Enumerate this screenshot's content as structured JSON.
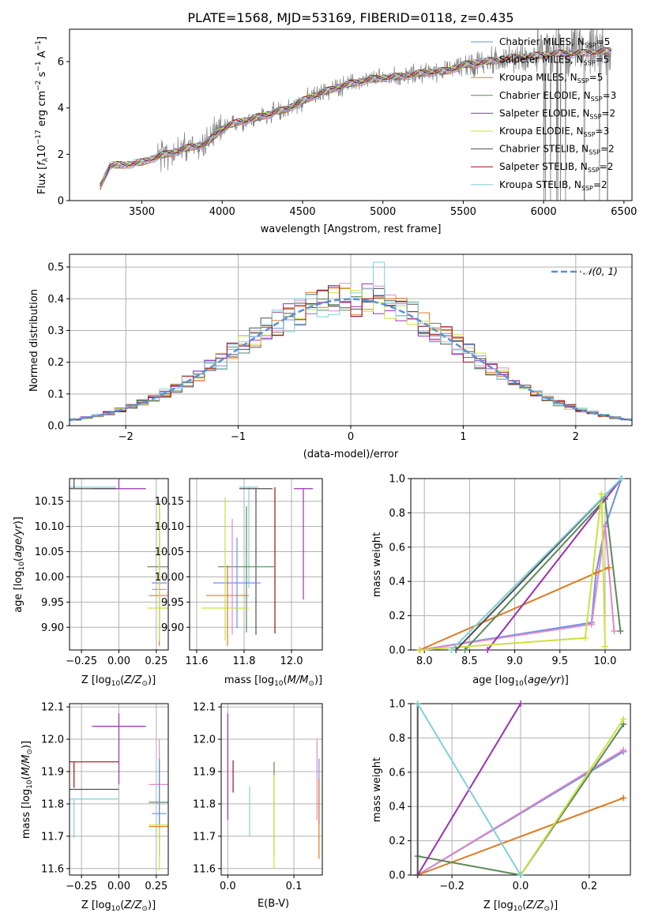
{
  "colors": {
    "Chabrier MILES": "#6a8fe8",
    "Salpeter MILES": "#e08ac8",
    "Kroupa MILES": "#e07a20",
    "Chabrier ELODIE": "#5a8a5a",
    "Salpeter ELODIE": "#9b30b0",
    "Kroupa ELODIE": "#cce040",
    "Chabrier STELIB": "#505050",
    "Salpeter STELIB": "#a01010",
    "Kroupa STELIB": "#80d0d8",
    "observed": "#808080",
    "gauss": "#5b8fd8"
  },
  "chart_data": [
    {
      "id": "spectrum",
      "type": "line",
      "title": "PLATE=1568, MJD=53169, FIBERID=0118, z=0.435",
      "xlabel": "wavelength [Angstrom, rest frame]",
      "ylabel": "Flux [f_λ 10^-17 erg cm^-2 s^-1 A^-1]",
      "xlim": [
        3050,
        6550
      ],
      "ylim": [
        0,
        7.4
      ],
      "xticks": [
        3500,
        4000,
        4500,
        5000,
        5500,
        6000,
        6500
      ],
      "yticks": [
        0,
        2,
        4,
        6
      ],
      "grid": false,
      "legend_position": "top-right",
      "legend": [
        {
          "name": "Chabrier MILES",
          "nssp": "5"
        },
        {
          "name": "Salpeter MILES",
          "nssp": "5"
        },
        {
          "name": "Kroupa MILES",
          "nssp": "5"
        },
        {
          "name": "Chabrier ELODIE",
          "nssp": "3"
        },
        {
          "name": "Salpeter ELODIE",
          "nssp": "2"
        },
        {
          "name": "Kroupa ELODIE",
          "nssp": "3"
        },
        {
          "name": "Chabrier STELIB",
          "nssp": "2"
        },
        {
          "name": "Salpeter STELIB",
          "nssp": "2"
        },
        {
          "name": "Kroupa STELIB",
          "nssp": "2"
        }
      ],
      "model_x": [
        3240,
        3300,
        3400,
        3500,
        3600,
        3700,
        3800,
        3900,
        4000,
        4100,
        4200,
        4300,
        4400,
        4500,
        4600,
        4700,
        4800,
        4900,
        5000,
        5100,
        5200,
        5300,
        5400,
        5500,
        5600,
        5700,
        5800,
        5900,
        6000,
        6100,
        6200,
        6300,
        6400
      ],
      "model_y": [
        0.6,
        1.5,
        1.55,
        1.65,
        1.9,
        2.1,
        2.3,
        2.45,
        3.1,
        3.4,
        3.55,
        3.75,
        3.95,
        4.3,
        4.6,
        4.85,
        5.05,
        5.2,
        5.3,
        5.35,
        5.45,
        5.55,
        5.6,
        5.85,
        5.95,
        6.05,
        6.15,
        6.2,
        6.3,
        6.35,
        6.35,
        6.4,
        6.45
      ]
    },
    {
      "id": "residuals",
      "type": "histogram",
      "xlabel": "(data-model)/error",
      "ylabel": "Normed distribution",
      "xlim": [
        -2.5,
        2.5
      ],
      "ylim": [
        0,
        0.54
      ],
      "xticks": [
        -2,
        -1,
        0,
        1,
        2
      ],
      "yticks": [
        0.0,
        0.1,
        0.2,
        0.3,
        0.4,
        0.5
      ],
      "grid": true,
      "legend_position": "top-right",
      "legend": [
        {
          "name": "𝒩(0, 1)"
        }
      ],
      "bin_width": 0.1
    },
    {
      "id": "age-vs-Z",
      "type": "errorbar",
      "xlabel": "Z [log10(Z/Z⊙)]",
      "ylabel": "age [log10(age/yr)]",
      "xlim": [
        -0.33,
        0.33
      ],
      "ylim": [
        9.855,
        10.195
      ],
      "xticks": [
        -0.25,
        0.0,
        0.25
      ],
      "yticks": [
        9.9,
        9.95,
        10.0,
        10.05,
        10.1,
        10.15
      ],
      "grid": true,
      "points": [
        {
          "model": "Salpeter ELODIE",
          "x": 0.0,
          "xerr": 0.18,
          "y": 10.175,
          "yerr": [
            0.0,
            0.225
          ]
        },
        {
          "model": "Kroupa STELIB",
          "x": -0.3,
          "xerr": 0.28,
          "y": 10.178,
          "yerr": [
            0.0,
            0.16
          ]
        },
        {
          "model": "Chabrier STELIB",
          "x": -0.3,
          "xerr": 0.28,
          "y": 10.175,
          "yerr": [
            0.0,
            0.16
          ]
        },
        {
          "model": "Chabrier ELODIE",
          "x": 0.27,
          "xerr": 0.08,
          "y": 10.02,
          "yerr": [
            0.13,
            0.125
          ]
        },
        {
          "model": "Chabrier MILES",
          "x": 0.27,
          "xerr": 0.05,
          "y": 9.988,
          "yerr": [
            0.09,
            0.09
          ]
        },
        {
          "model": "Kroupa MILES",
          "x": 0.27,
          "xerr": 0.07,
          "y": 9.963,
          "yerr": [
            0.1,
            0.09
          ]
        },
        {
          "model": "Salpeter MILES",
          "x": 0.27,
          "xerr": 0.05,
          "y": 9.975,
          "yerr": [
            0.09,
            0.09
          ]
        },
        {
          "model": "Kroupa ELODIE",
          "x": 0.27,
          "xerr": 0.08,
          "y": 9.938,
          "yerr": [
            0.065,
            0.21
          ]
        }
      ]
    },
    {
      "id": "age-vs-mass",
      "type": "errorbar",
      "xlabel": "mass [log10(M/M⊙)]",
      "ylabel": "",
      "xlim": [
        11.57,
        12.13
      ],
      "ylim": [
        9.855,
        10.195
      ],
      "xticks": [
        11.6,
        11.8,
        12.0
      ],
      "yticks": [
        9.9,
        9.95,
        10.0,
        10.05,
        10.1,
        10.15
      ],
      "grid": true,
      "points": [
        {
          "model": "Salpeter ELODIE",
          "x": 12.05,
          "xerr": 0.04,
          "y": 10.175,
          "yerr": [
            0.22,
            0.0
          ]
        },
        {
          "model": "Salpeter STELIB",
          "x": 11.93,
          "xerr": 0.0,
          "y": 10.178,
          "yerr": [
            0.29,
            0.0
          ]
        },
        {
          "model": "Kroupa STELIB",
          "x": 11.82,
          "xerr": 0.04,
          "y": 10.178,
          "yerr": [
            0.2,
            0.0
          ]
        },
        {
          "model": "Chabrier STELIB",
          "x": 11.85,
          "xerr": 0.07,
          "y": 10.175,
          "yerr": [
            0.29,
            0.0
          ]
        },
        {
          "model": "Chabrier ELODIE",
          "x": 11.81,
          "xerr": 0.12,
          "y": 10.02,
          "yerr": [
            0.13,
            0.12
          ]
        },
        {
          "model": "Chabrier MILES",
          "x": 11.77,
          "xerr": 0.1,
          "y": 9.988,
          "yerr": [
            0.09,
            0.09
          ]
        },
        {
          "model": "Kroupa MILES",
          "x": 11.73,
          "xerr": 0.09,
          "y": 9.963,
          "yerr": [
            0.1,
            0.06
          ]
        },
        {
          "model": "Salpeter MILES",
          "x": 11.75,
          "xerr": 0.0,
          "y": 9.975,
          "yerr": [
            0.09,
            0.14
          ]
        },
        {
          "model": "Kroupa ELODIE",
          "x": 11.72,
          "xerr": 0.1,
          "y": 9.938,
          "yerr": [
            0.065,
            0.22
          ]
        }
      ]
    },
    {
      "id": "weight-vs-age",
      "type": "line",
      "xlabel": "age [log10(age/yr)]",
      "ylabel": "mass weight",
      "xlim": [
        7.85,
        10.28
      ],
      "ylim": [
        0,
        1.0
      ],
      "xticks": [
        8.0,
        8.5,
        9.0,
        9.5,
        10.0
      ],
      "yticks": [
        0.0,
        0.2,
        0.4,
        0.6,
        0.8,
        1.0
      ],
      "grid": true,
      "series": [
        {
          "model": "Chabrier MILES",
          "x": [
            7.95,
            9.85,
            9.9,
            10.0,
            10.18
          ],
          "y": [
            0.0,
            0.16,
            0.45,
            0.72,
            1.0
          ]
        },
        {
          "model": "Salpeter MILES",
          "x": [
            7.95,
            9.85,
            10.0,
            10.1
          ],
          "y": [
            0.0,
            0.15,
            0.73,
            0.11
          ]
        },
        {
          "model": "Kroupa MILES",
          "x": [
            7.95,
            9.9,
            10.04
          ],
          "y": [
            0.0,
            0.45,
            0.48
          ]
        },
        {
          "model": "Chabrier ELODIE",
          "x": [
            8.45,
            10.0,
            10.17
          ],
          "y": [
            0.0,
            0.88,
            0.11
          ]
        },
        {
          "model": "Salpeter ELODIE",
          "x": [
            8.7,
            10.18
          ],
          "y": [
            0.0,
            1.0
          ]
        },
        {
          "model": "Kroupa ELODIE",
          "x": [
            7.95,
            9.78,
            9.96,
            10.0
          ],
          "y": [
            0.0,
            0.07,
            0.91,
            0.02
          ]
        },
        {
          "model": "Chabrier STELIB",
          "x": [
            8.35,
            10.18
          ],
          "y": [
            0.0,
            1.0
          ]
        },
        {
          "model": "Kroupa STELIB",
          "x": [
            8.3,
            10.18
          ],
          "y": [
            0.0,
            1.0
          ]
        }
      ]
    },
    {
      "id": "mass-vs-Z",
      "type": "errorbar",
      "xlabel": "Z [log10(Z/Z⊙)]",
      "ylabel": "mass [log10(M/M⊙)]",
      "xlim": [
        -0.33,
        0.33
      ],
      "ylim": [
        11.58,
        12.11
      ],
      "xticks": [
        -0.25,
        0.0,
        0.25
      ],
      "yticks": [
        11.6,
        11.7,
        11.8,
        11.9,
        12.0,
        12.1
      ],
      "grid": true,
      "points": [
        {
          "model": "Salpeter ELODIE",
          "x": 0.0,
          "xerr": 0.18,
          "y": 12.04,
          "yerr": [
            0.18,
            0.04
          ]
        },
        {
          "model": "Salpeter STELIB",
          "x": -0.3,
          "xerr": 0.3,
          "y": 11.93,
          "yerr": [
            0.08,
            0.0
          ]
        },
        {
          "model": "Chabrier STELIB",
          "x": -0.3,
          "xerr": 0.3,
          "y": 11.845,
          "yerr": [
            0.0,
            0.0
          ]
        },
        {
          "model": "Kroupa STELIB",
          "x": -0.3,
          "xerr": 0.3,
          "y": 11.815,
          "yerr": [
            0.12,
            0.0
          ]
        },
        {
          "model": "Salpeter MILES",
          "x": 0.27,
          "xerr": 0.07,
          "y": 11.86,
          "yerr": [
            0.11,
            0.14
          ]
        },
        {
          "model": "Chabrier ELODIE",
          "x": 0.27,
          "xerr": 0.07,
          "y": 11.805,
          "yerr": [
            0.17,
            0.13
          ]
        },
        {
          "model": "Chabrier MILES",
          "x": 0.27,
          "xerr": 0.05,
          "y": 11.77,
          "yerr": [
            0.07,
            0.17
          ]
        },
        {
          "model": "Kroupa ELODIE",
          "x": 0.27,
          "xerr": 0.07,
          "y": 11.735,
          "yerr": [
            0.14,
            0.0
          ]
        },
        {
          "model": "Kroupa MILES",
          "x": 0.27,
          "xerr": 0.07,
          "y": 11.73,
          "yerr": [
            0.0,
            0.0
          ]
        }
      ]
    },
    {
      "id": "mass-vs-EBV",
      "type": "errorbar",
      "xlabel": "E(B-V)",
      "ylabel": "",
      "xlim": [
        -0.01,
        0.143
      ],
      "ylim": [
        11.58,
        12.11
      ],
      "xticks": [
        0.0,
        0.1
      ],
      "yticks": [
        11.6,
        11.7,
        11.8,
        11.9,
        12.0,
        12.1
      ],
      "grid": true,
      "points": [
        {
          "model": "Salpeter ELODIE",
          "x": 0.0,
          "y": 11.92,
          "yerr": [
            0.17,
            0.16
          ]
        },
        {
          "model": "Salpeter STELIB",
          "x": 0.008,
          "y": 11.885,
          "yerr": [
            0.05,
            0.05
          ]
        },
        {
          "model": "Kroupa STELIB",
          "x": 0.033,
          "y": 11.775,
          "yerr": [
            0.075,
            0.08
          ]
        },
        {
          "model": "Chabrier ELODIE",
          "x": 0.07,
          "y": 11.79,
          "yerr": [
            0.15,
            0.14
          ]
        },
        {
          "model": "Kroupa ELODIE",
          "x": 0.07,
          "y": 11.73,
          "yerr": [
            0.13,
            0.16
          ]
        },
        {
          "model": "Salpeter MILES",
          "x": 0.135,
          "y": 11.87,
          "yerr": [
            0.12,
            0.13
          ]
        },
        {
          "model": "Chabrier MILES",
          "x": 0.138,
          "y": 11.87,
          "yerr": [
            0.13,
            0.07
          ]
        },
        {
          "model": "Kroupa MILES",
          "x": 0.138,
          "y": 11.76,
          "yerr": [
            0.13,
            0.12
          ]
        }
      ]
    },
    {
      "id": "weight-vs-Z",
      "type": "line",
      "xlabel": "Z [log10(Z/Z⊙)]",
      "ylabel": "mass weight",
      "xlim": [
        -0.32,
        0.32
      ],
      "ylim": [
        0,
        1.0
      ],
      "xticks": [
        -0.2,
        0.0,
        0.2
      ],
      "yticks": [
        0.0,
        0.2,
        0.4,
        0.6,
        0.8,
        1.0
      ],
      "grid": true,
      "series": [
        {
          "model": "Chabrier MILES",
          "x": [
            -0.3,
            0.3
          ],
          "y": [
            0.0,
            0.72
          ]
        },
        {
          "model": "Salpeter MILES",
          "x": [
            -0.3,
            0.3
          ],
          "y": [
            0.0,
            0.73
          ]
        },
        {
          "model": "Kroupa MILES",
          "x": [
            -0.3,
            0.3
          ],
          "y": [
            0.0,
            0.45
          ]
        },
        {
          "model": "Chabrier ELODIE",
          "x": [
            -0.3,
            0.0,
            0.3
          ],
          "y": [
            0.11,
            0.0,
            0.88
          ]
        },
        {
          "model": "Salpeter ELODIE",
          "x": [
            -0.3,
            0.0
          ],
          "y": [
            0.0,
            1.0
          ]
        },
        {
          "model": "Kroupa ELODIE",
          "x": [
            0.0,
            0.3
          ],
          "y": [
            0.0,
            0.91
          ]
        },
        {
          "model": "Chabrier STELIB",
          "x": [
            -0.3,
            -0.3
          ],
          "y": [
            0.0,
            1.0
          ]
        },
        {
          "model": "Kroupa STELIB",
          "x": [
            -0.3,
            0.0
          ],
          "y": [
            1.0,
            0.0
          ]
        }
      ]
    }
  ]
}
